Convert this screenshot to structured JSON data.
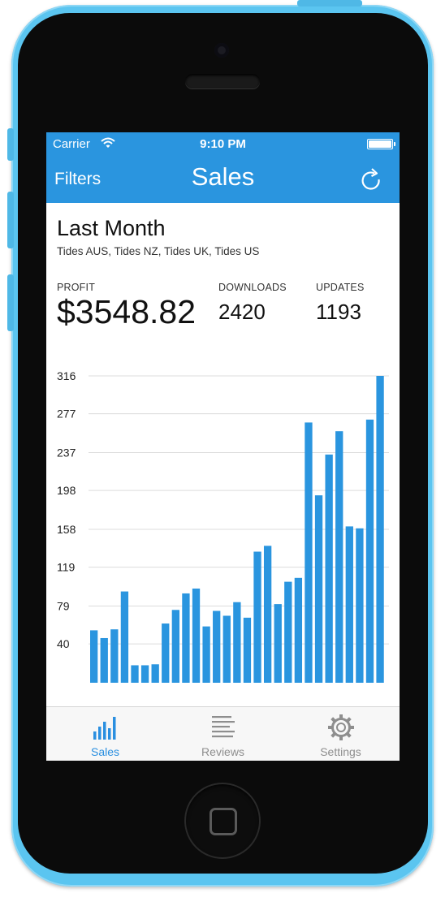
{
  "status_bar": {
    "carrier": "Carrier",
    "time": "9:10 PM"
  },
  "nav": {
    "left_label": "Filters",
    "title": "Sales",
    "right_icon": "refresh-icon"
  },
  "summary": {
    "period": "Last Month",
    "apps": "Tides AUS, Tides NZ, Tides UK, Tides US",
    "profit_label": "PROFIT",
    "profit_value": "$3548.82",
    "downloads_label": "DOWNLOADS",
    "downloads_value": "2420",
    "updates_label": "UPDATES",
    "updates_value": "1193"
  },
  "chart_data": {
    "type": "bar",
    "y_ticks": [
      "316",
      "277",
      "237",
      "198",
      "158",
      "119",
      "79",
      "40"
    ],
    "ylim": [
      0,
      316
    ],
    "grid": true,
    "color": "#2a95df",
    "values": [
      54,
      46,
      55,
      94,
      18,
      18,
      19,
      61,
      75,
      92,
      97,
      58,
      74,
      69,
      83,
      67,
      135,
      141,
      81,
      104,
      108,
      268,
      193,
      235,
      259,
      161,
      159,
      271,
      316
    ]
  },
  "tabbar": {
    "tabs": [
      {
        "label": "Sales",
        "icon": "bar-chart-icon",
        "active": true
      },
      {
        "label": "Reviews",
        "icon": "list-lines-icon",
        "active": false
      },
      {
        "label": "Settings",
        "icon": "gear-icon",
        "active": false
      }
    ]
  },
  "colors": {
    "accent": "#2a95df",
    "phone_body": "#5bc5f0",
    "tab_active": "#2a8fe0"
  }
}
